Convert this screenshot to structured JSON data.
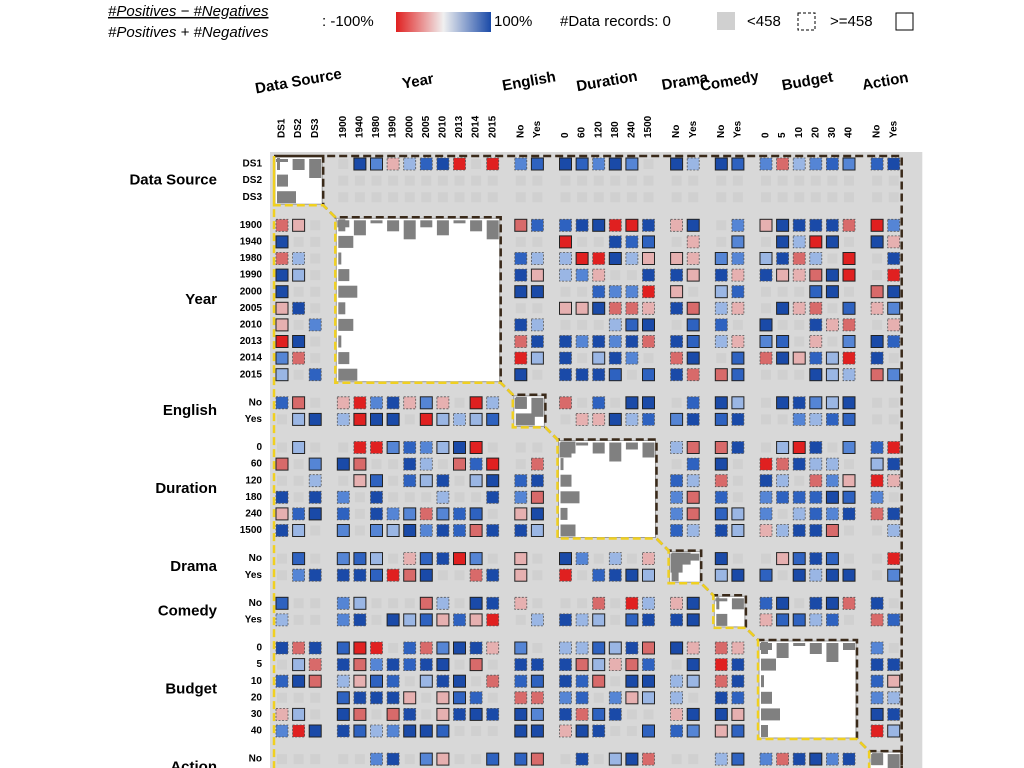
{
  "legend": {
    "numerator": "#Positives − #Negatives",
    "denominator": "#Positives + #Negatives",
    "min_label": ": -100%",
    "max_label": "100%",
    "records_label": "#Data records: 0",
    "small_label": "<458",
    "large_label": ">=458"
  },
  "dimensions": [
    {
      "name": "Data Source",
      "values": [
        "DS1",
        "DS2",
        "DS3"
      ]
    },
    {
      "name": "Year",
      "values": [
        "1900",
        "1940",
        "1980",
        "1990",
        "2000",
        "2005",
        "2010",
        "2013",
        "2014",
        "2015"
      ]
    },
    {
      "name": "English",
      "values": [
        "No",
        "Yes"
      ]
    },
    {
      "name": "Duration",
      "values": [
        "0",
        "60",
        "120",
        "180",
        "240",
        "1500"
      ]
    },
    {
      "name": "Drama",
      "values": [
        "No",
        "Yes"
      ]
    },
    {
      "name": "Comedy",
      "values": [
        "No",
        "Yes"
      ]
    },
    {
      "name": "Budget",
      "values": [
        "0",
        "5",
        "10",
        "20",
        "30",
        "40"
      ]
    },
    {
      "name": "Action",
      "values": [
        "No",
        "Yes"
      ]
    }
  ]
}
